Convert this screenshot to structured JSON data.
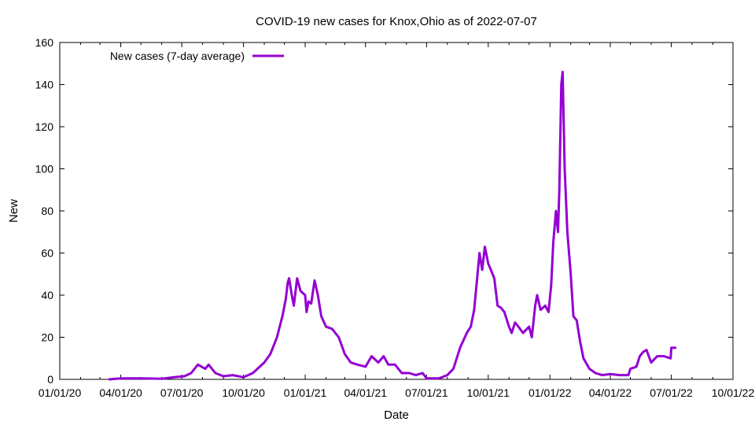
{
  "chart_data": {
    "type": "line",
    "title": "COVID-19 new cases for Knox,Ohio as of 2022-07-07",
    "xlabel": "Date",
    "ylabel": "New",
    "x_ticks": [
      "01/01/20",
      "04/01/20",
      "07/01/20",
      "10/01/20",
      "01/01/21",
      "04/01/21",
      "07/01/21",
      "10/01/21",
      "01/01/22",
      "04/01/22",
      "07/01/22",
      "10/01/22"
    ],
    "y_ticks": [
      "0",
      "20",
      "40",
      "60",
      "80",
      "100",
      "120",
      "140",
      "160"
    ],
    "xlim": [
      "2020-01-01",
      "2022-10-01"
    ],
    "ylim": [
      0,
      160
    ],
    "line_color": "#9400d3",
    "legend_position": "top-left",
    "series": [
      {
        "name": "New cases (7-day average)",
        "points": [
          [
            "2020-03-15",
            0
          ],
          [
            "2020-04-01",
            0.5
          ],
          [
            "2020-05-01",
            0.5
          ],
          [
            "2020-06-01",
            0.3
          ],
          [
            "2020-06-20",
            1
          ],
          [
            "2020-07-05",
            1.5
          ],
          [
            "2020-07-15",
            3
          ],
          [
            "2020-07-25",
            7
          ],
          [
            "2020-08-05",
            5
          ],
          [
            "2020-08-10",
            7
          ],
          [
            "2020-08-20",
            3
          ],
          [
            "2020-09-01",
            1.5
          ],
          [
            "2020-09-15",
            2
          ],
          [
            "2020-10-01",
            1
          ],
          [
            "2020-10-15",
            3
          ],
          [
            "2020-11-01",
            8
          ],
          [
            "2020-11-10",
            12
          ],
          [
            "2020-11-20",
            20
          ],
          [
            "2020-11-28",
            30
          ],
          [
            "2020-12-03",
            38
          ],
          [
            "2020-12-06",
            46
          ],
          [
            "2020-12-08",
            48
          ],
          [
            "2020-12-12",
            40
          ],
          [
            "2020-12-15",
            35
          ],
          [
            "2020-12-20",
            48
          ],
          [
            "2020-12-25",
            42
          ],
          [
            "2021-01-01",
            40
          ],
          [
            "2021-01-03",
            32
          ],
          [
            "2021-01-06",
            37
          ],
          [
            "2021-01-10",
            36
          ],
          [
            "2021-01-15",
            47
          ],
          [
            "2021-01-20",
            40
          ],
          [
            "2021-01-25",
            30
          ],
          [
            "2021-02-01",
            25
          ],
          [
            "2021-02-10",
            24
          ],
          [
            "2021-02-20",
            20
          ],
          [
            "2021-03-01",
            12
          ],
          [
            "2021-03-10",
            8
          ],
          [
            "2021-03-20",
            7
          ],
          [
            "2021-04-01",
            6
          ],
          [
            "2021-04-10",
            11
          ],
          [
            "2021-04-20",
            8
          ],
          [
            "2021-04-28",
            11
          ],
          [
            "2021-05-05",
            7
          ],
          [
            "2021-05-15",
            7
          ],
          [
            "2021-05-25",
            3
          ],
          [
            "2021-06-05",
            3
          ],
          [
            "2021-06-15",
            2
          ],
          [
            "2021-06-25",
            3
          ],
          [
            "2021-07-01",
            0.5
          ],
          [
            "2021-07-20",
            0.5
          ],
          [
            "2021-08-01",
            2
          ],
          [
            "2021-08-10",
            5
          ],
          [
            "2021-08-20",
            15
          ],
          [
            "2021-08-30",
            22
          ],
          [
            "2021-09-05",
            25
          ],
          [
            "2021-09-10",
            33
          ],
          [
            "2021-09-15",
            50
          ],
          [
            "2021-09-18",
            60
          ],
          [
            "2021-09-22",
            52
          ],
          [
            "2021-09-26",
            63
          ],
          [
            "2021-10-01",
            55
          ],
          [
            "2021-10-05",
            52
          ],
          [
            "2021-10-10",
            48
          ],
          [
            "2021-10-15",
            35
          ],
          [
            "2021-10-20",
            34
          ],
          [
            "2021-10-25",
            32
          ],
          [
            "2021-11-01",
            25
          ],
          [
            "2021-11-05",
            22
          ],
          [
            "2021-11-10",
            27
          ],
          [
            "2021-11-15",
            25
          ],
          [
            "2021-11-22",
            22
          ],
          [
            "2021-12-01",
            25
          ],
          [
            "2021-12-05",
            20
          ],
          [
            "2021-12-10",
            35
          ],
          [
            "2021-12-13",
            40
          ],
          [
            "2021-12-18",
            33
          ],
          [
            "2021-12-25",
            35
          ],
          [
            "2021-12-30",
            32
          ],
          [
            "2022-01-03",
            45
          ],
          [
            "2022-01-06",
            65
          ],
          [
            "2022-01-10",
            80
          ],
          [
            "2022-01-13",
            70
          ],
          [
            "2022-01-15",
            90
          ],
          [
            "2022-01-18",
            140
          ],
          [
            "2022-01-20",
            146
          ],
          [
            "2022-01-23",
            100
          ],
          [
            "2022-01-27",
            70
          ],
          [
            "2022-02-01",
            50
          ],
          [
            "2022-02-05",
            30
          ],
          [
            "2022-02-10",
            28
          ],
          [
            "2022-02-15",
            18
          ],
          [
            "2022-02-20",
            10
          ],
          [
            "2022-03-01",
            5
          ],
          [
            "2022-03-10",
            3
          ],
          [
            "2022-03-20",
            2
          ],
          [
            "2022-04-01",
            2.5
          ],
          [
            "2022-04-15",
            2
          ],
          [
            "2022-04-28",
            2
          ],
          [
            "2022-05-01",
            5
          ],
          [
            "2022-05-10",
            6
          ],
          [
            "2022-05-15",
            11
          ],
          [
            "2022-05-20",
            13
          ],
          [
            "2022-05-25",
            14
          ],
          [
            "2022-06-01",
            8
          ],
          [
            "2022-06-10",
            11
          ],
          [
            "2022-06-20",
            11
          ],
          [
            "2022-06-30",
            10
          ],
          [
            "2022-07-01",
            15
          ],
          [
            "2022-07-07",
            15
          ]
        ]
      }
    ]
  }
}
